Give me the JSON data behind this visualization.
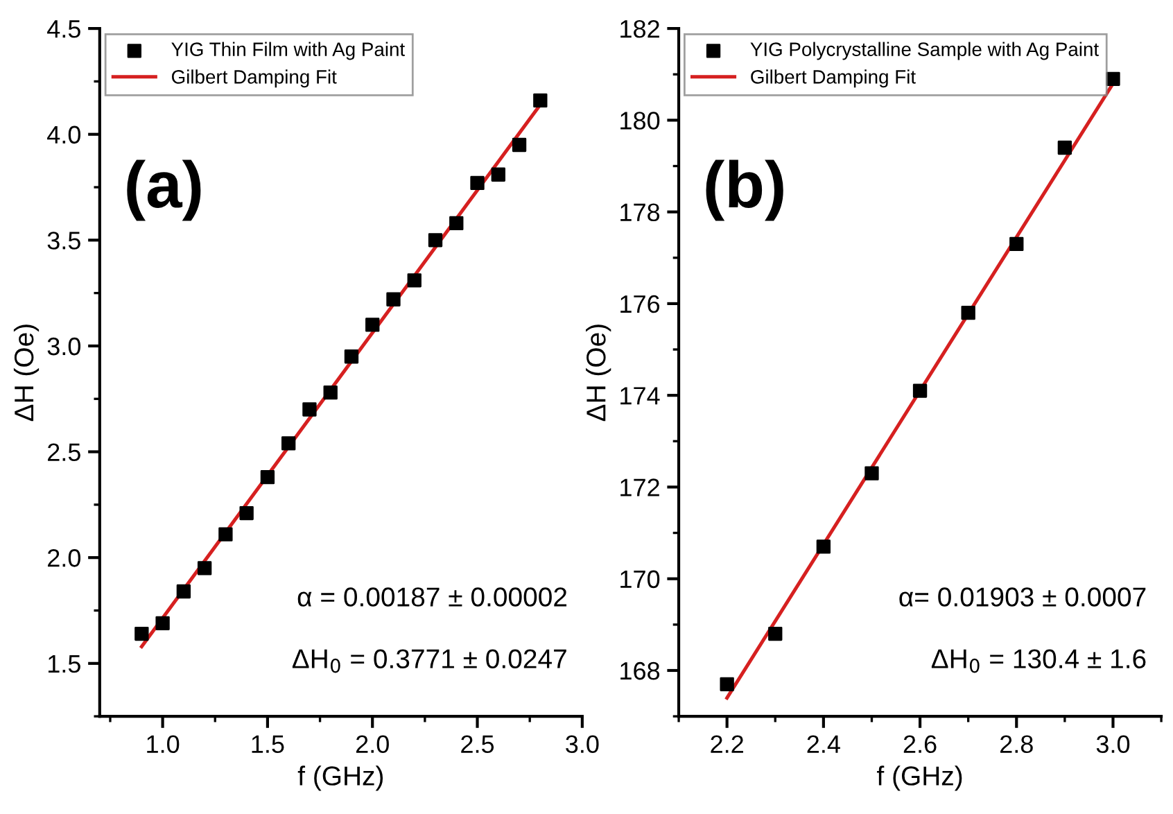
{
  "chart_data": [
    {
      "type": "scatter",
      "xlabel": "f (GHz)",
      "ylabel": "ΔH (Oe)",
      "xlim": [
        0.7,
        3.0
      ],
      "ylim": [
        1.25,
        4.5
      ],
      "xticks": [
        {
          "value": 1,
          "label": "1.0"
        },
        1.5,
        {
          "value": 2,
          "label": "2.0"
        },
        2.5,
        {
          "value": 3,
          "label": "3.0"
        }
      ],
      "yticks": [
        1.5,
        {
          "value": 2,
          "label": "2.0"
        },
        2.5,
        {
          "value": 3,
          "label": "3.0"
        },
        3.5,
        {
          "value": 4,
          "label": "4.0"
        },
        4.5
      ],
      "legend": "top left",
      "grid": false,
      "annotations": [
        "(a)",
        "α = 0.00187 ± 0.00002",
        "ΔH$_{0}$ = 0.3771 ± 0.0247"
      ],
      "series": [
        {
          "name": "YIG Thin Film with Ag Paint",
          "marker": "square",
          "color": "#000000",
          "x": [
            0.9,
            1.0,
            1.1,
            1.2,
            1.3,
            1.4,
            1.5,
            1.6,
            1.7,
            1.8,
            1.9,
            2.0,
            2.1,
            2.2,
            2.3,
            2.4,
            2.5,
            2.6,
            2.7,
            2.8
          ],
          "values": [
            1.64,
            1.69,
            1.84,
            1.95,
            2.11,
            2.21,
            2.38,
            2.54,
            2.7,
            2.78,
            2.95,
            3.1,
            3.22,
            3.31,
            3.5,
            3.58,
            3.77,
            3.81,
            3.95,
            4.16
          ]
        },
        {
          "name": "Gilbert Damping Fit",
          "type": "line",
          "line_style": "solid",
          "color": "#d62020",
          "x": [
            0.9,
            2.8
          ],
          "values": [
            1.58,
            4.14
          ]
        }
      ]
    },
    {
      "type": "scatter",
      "xlabel": "f (GHz)",
      "ylabel": "ΔH (Oe)",
      "xlim": [
        2.1,
        3.1
      ],
      "ylim": [
        167,
        182
      ],
      "xticks": [
        2.2,
        2.4,
        2.6,
        2.8,
        {
          "value": 3,
          "label": "3.0"
        }
      ],
      "yticks": [
        168,
        170,
        172,
        174,
        176,
        178,
        180,
        182
      ],
      "legend": "top left",
      "grid": false,
      "annotations": [
        "(b)",
        "α= 0.01903 ± 0.0007",
        "ΔH$_{0}$ = 130.4 ± 1.6"
      ],
      "series": [
        {
          "name": "YIG Polycrystalline Sample with Ag Paint",
          "marker": "square",
          "color": "#000000",
          "x": [
            2.2,
            2.3,
            2.4,
            2.5,
            2.6,
            2.7,
            2.8,
            2.9,
            3.0
          ],
          "values": [
            167.7,
            168.8,
            170.7,
            172.3,
            174.1,
            175.8,
            177.3,
            179.4,
            180.9
          ]
        },
        {
          "name": "Gilbert Damping Fit",
          "type": "line",
          "line_style": "solid",
          "color": "#d62020",
          "x": [
            2.2,
            3.0
          ],
          "values": [
            167.4,
            180.8
          ]
        }
      ]
    }
  ]
}
